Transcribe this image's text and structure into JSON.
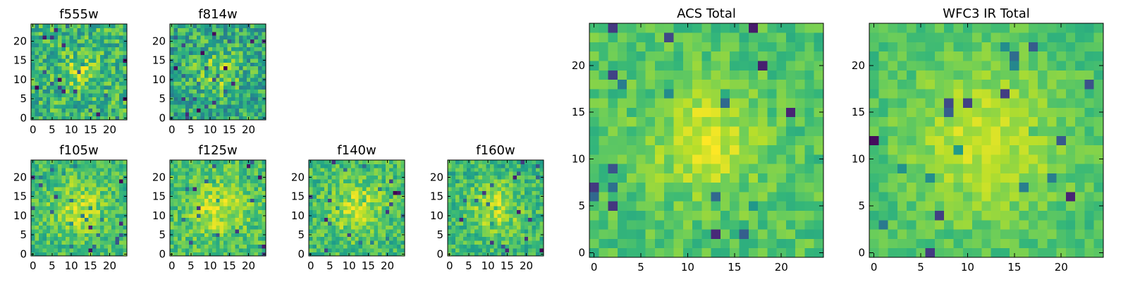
{
  "chart_data": [
    {
      "type": "heatmap",
      "id": "f555w",
      "title": "f555w",
      "colormap": "viridis",
      "grid_size": 25,
      "xlim": [
        0,
        24
      ],
      "ylim": [
        0,
        24
      ],
      "xticks": [
        0,
        5,
        10,
        15,
        20
      ],
      "yticks": [
        0,
        5,
        10,
        15,
        20
      ],
      "seed": 11,
      "sigma": 3,
      "noise": 0.9,
      "brightness": 0.66,
      "spread": 0.45
    },
    {
      "type": "heatmap",
      "id": "f814w",
      "title": "f814w",
      "colormap": "viridis",
      "grid_size": 25,
      "xlim": [
        0,
        24
      ],
      "ylim": [
        0,
        24
      ],
      "xticks": [
        0,
        5,
        10,
        15,
        20
      ],
      "yticks": [
        0,
        5,
        10,
        15,
        20
      ],
      "seed": 23,
      "sigma": 4,
      "noise": 0.85,
      "brightness": 0.6,
      "spread": 0.5
    },
    {
      "type": "heatmap",
      "id": "f105w",
      "title": "f105w",
      "colormap": "viridis",
      "grid_size": 25,
      "xlim": [
        0,
        24
      ],
      "ylim": [
        0,
        24
      ],
      "xticks": [
        0,
        5,
        10,
        15,
        20
      ],
      "yticks": [
        0,
        5,
        10,
        15,
        20
      ],
      "seed": 37,
      "sigma": 5,
      "noise": 0.6,
      "brightness": 0.68,
      "spread": 0.5
    },
    {
      "type": "heatmap",
      "id": "f125w",
      "title": "f125w",
      "colormap": "viridis",
      "grid_size": 25,
      "xlim": [
        0,
        24
      ],
      "ylim": [
        0,
        24
      ],
      "xticks": [
        0,
        5,
        10,
        15,
        20
      ],
      "yticks": [
        0,
        5,
        10,
        15,
        20
      ],
      "seed": 41,
      "sigma": 5,
      "noise": 0.6,
      "brightness": 0.7,
      "spread": 0.5
    },
    {
      "type": "heatmap",
      "id": "f140w",
      "title": "f140w",
      "colormap": "viridis",
      "grid_size": 25,
      "xlim": [
        0,
        24
      ],
      "ylim": [
        0,
        24
      ],
      "xticks": [
        0,
        5,
        10,
        15,
        20
      ],
      "yticks": [
        0,
        5,
        10,
        15,
        20
      ],
      "seed": 53,
      "sigma": 5,
      "noise": 0.6,
      "brightness": 0.68,
      "spread": 0.5
    },
    {
      "type": "heatmap",
      "id": "f160w",
      "title": "f160w",
      "colormap": "viridis",
      "grid_size": 25,
      "xlim": [
        0,
        24
      ],
      "ylim": [
        0,
        24
      ],
      "xticks": [
        0,
        5,
        10,
        15,
        20
      ],
      "yticks": [
        0,
        5,
        10,
        15,
        20
      ],
      "seed": 67,
      "sigma": 5,
      "noise": 0.6,
      "brightness": 0.66,
      "spread": 0.5
    },
    {
      "type": "heatmap",
      "id": "acs_total",
      "title": "ACS Total",
      "colormap": "viridis",
      "grid_size": 25,
      "xlim": [
        0,
        24
      ],
      "ylim": [
        0,
        24
      ],
      "xticks": [
        0,
        5,
        10,
        15,
        20
      ],
      "yticks": [
        0,
        5,
        10,
        15,
        20
      ],
      "seed": 79,
      "sigma": 4,
      "noise": 0.5,
      "brightness": 0.72,
      "spread": 0.4
    },
    {
      "type": "heatmap",
      "id": "wfc3_ir_total",
      "title": "WFC3 IR Total",
      "colormap": "viridis",
      "grid_size": 25,
      "xlim": [
        0,
        24
      ],
      "ylim": [
        0,
        24
      ],
      "xticks": [
        0,
        5,
        10,
        15,
        20
      ],
      "yticks": [
        0,
        5,
        10,
        15,
        20
      ],
      "seed": 97,
      "sigma": 6,
      "noise": 0.4,
      "brightness": 0.7,
      "spread": 0.42
    }
  ]
}
